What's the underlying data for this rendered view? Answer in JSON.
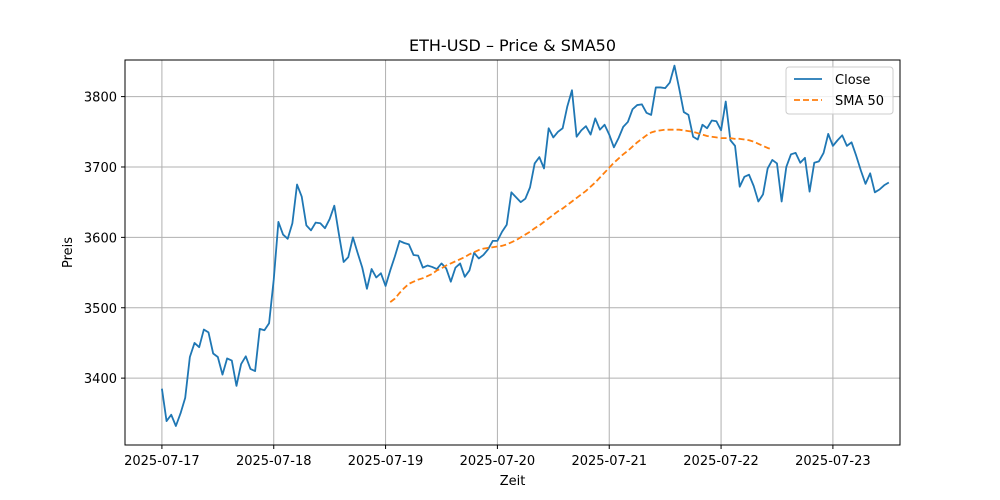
{
  "chart_data": {
    "type": "line",
    "title": "ETH-USD – Price & SMA50",
    "xlabel": "Zeit",
    "ylabel": "Preis",
    "x_tick_labels": [
      "2025-07-17",
      "2025-07-18",
      "2025-07-19",
      "2025-07-20",
      "2025-07-21",
      "2025-07-22",
      "2025-07-23"
    ],
    "y_ticks": [
      3400,
      3500,
      3600,
      3700,
      3800
    ],
    "ylim": [
      3305,
      3852
    ],
    "xlim": [
      -0.33,
      6.6
    ],
    "grid": true,
    "legend_position": "top-right",
    "series": [
      {
        "name": "Close",
        "color": "#1f77b4",
        "style": "solid",
        "x_step_hours": 1,
        "x_start": "2025-07-17T00:00",
        "values": [
          3385,
          3339,
          3348,
          3332,
          3350,
          3372,
          3430,
          3450,
          3444,
          3469,
          3465,
          3435,
          3430,
          3405,
          3428,
          3425,
          3389,
          3420,
          3431,
          3413,
          3410,
          3470,
          3468,
          3478,
          3540,
          3622,
          3604,
          3598,
          3620,
          3675,
          3658,
          3617,
          3610,
          3621,
          3620,
          3613,
          3626,
          3645,
          3604,
          3565,
          3572,
          3600,
          3578,
          3557,
          3527,
          3555,
          3543,
          3549,
          3531,
          3553,
          3573,
          3595,
          3592,
          3590,
          3575,
          3574,
          3557,
          3560,
          3558,
          3555,
          3563,
          3556,
          3537,
          3557,
          3563,
          3544,
          3553,
          3578,
          3570,
          3575,
          3583,
          3595,
          3595,
          3608,
          3618,
          3664,
          3657,
          3650,
          3655,
          3671,
          3705,
          3714,
          3698,
          3755,
          3742,
          3750,
          3755,
          3786,
          3809,
          3743,
          3752,
          3758,
          3746,
          3769,
          3753,
          3760,
          3746,
          3728,
          3741,
          3757,
          3764,
          3782,
          3788,
          3789,
          3777,
          3774,
          3813,
          3813,
          3812,
          3820,
          3844,
          3812,
          3778,
          3774,
          3743,
          3739,
          3760,
          3755,
          3766,
          3765,
          3752,
          3793,
          3738,
          3730,
          3672,
          3686,
          3689,
          3673,
          3651,
          3661,
          3698,
          3710,
          3705,
          3651,
          3700,
          3718,
          3720,
          3706,
          3713,
          3665,
          3706,
          3708,
          3720,
          3747,
          3730,
          3738,
          3745,
          3730,
          3735,
          3716,
          3695,
          3676,
          3691,
          3664,
          3668,
          3674,
          3678
        ]
      },
      {
        "name": "SMA 50",
        "color": "#ff7f0e",
        "style": "dashed",
        "x_step_hours": 1,
        "x_start": "2025-07-19T01:00",
        "values": [
          3508,
          3513,
          3521,
          3528,
          3534,
          3537,
          3540,
          3542,
          3545,
          3548,
          3553,
          3556,
          3560,
          3563,
          3566,
          3569,
          3572,
          3576,
          3579,
          3582,
          3584,
          3585,
          3586,
          3587,
          3588,
          3590,
          3593,
          3596,
          3600,
          3604,
          3608,
          3613,
          3617,
          3622,
          3627,
          3632,
          3637,
          3641,
          3646,
          3651,
          3656,
          3661,
          3666,
          3672,
          3678,
          3685,
          3692,
          3699,
          3706,
          3712,
          3718,
          3723,
          3729,
          3735,
          3740,
          3745,
          3749,
          3751,
          3752,
          3753,
          3753,
          3753,
          3753,
          3752,
          3751,
          3750,
          3748,
          3746,
          3744,
          3743,
          3742,
          3741,
          3741,
          3741,
          3740,
          3740,
          3739,
          3738,
          3736,
          3733,
          3730,
          3727,
          3725
        ]
      }
    ]
  }
}
